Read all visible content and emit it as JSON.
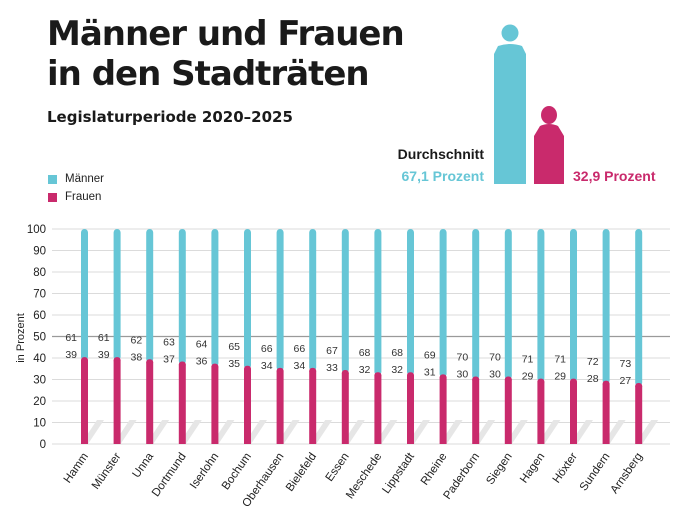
{
  "header": {
    "title_line1": "Männer und Frauen",
    "title_line2": "in den Stadträten",
    "subtitle": "Legislaturperiode 2020–2025"
  },
  "legend": {
    "men": "Männer",
    "women": "Frauen"
  },
  "average": {
    "label": "Durchschnitt",
    "men": "67,1 Prozent",
    "women": "32,9 Prozent",
    "men_value": 67.1,
    "women_value": 32.9
  },
  "colors": {
    "men": "#66c6d6",
    "women": "#c92a6c",
    "shadow": "#e6e6e6"
  },
  "chart_data": {
    "type": "bar",
    "stacked": true,
    "ylabel": "in Prozent",
    "ylim": [
      0,
      100
    ],
    "yticks": [
      0,
      10,
      20,
      30,
      40,
      50,
      60,
      70,
      80,
      90,
      100
    ],
    "categories": [
      "Hamm",
      "Münster",
      "Unna",
      "Dortmund",
      "Iserlohn",
      "Bochum",
      "Oberhausen",
      "Bielefeld",
      "Essen",
      "Meschede",
      "Lippstadt",
      "Rheine",
      "Paderborn",
      "Siegen",
      "Hagen",
      "Höxter",
      "Sundern",
      "Arnsberg"
    ],
    "series": [
      {
        "name": "Männer",
        "values": [
          61,
          61,
          62,
          63,
          64,
          65,
          66,
          66,
          67,
          68,
          68,
          69,
          70,
          70,
          71,
          71,
          72,
          73
        ]
      },
      {
        "name": "Frauen",
        "values": [
          39,
          39,
          38,
          37,
          36,
          35,
          34,
          34,
          33,
          32,
          32,
          31,
          30,
          30,
          29,
          29,
          28,
          27
        ]
      }
    ]
  }
}
